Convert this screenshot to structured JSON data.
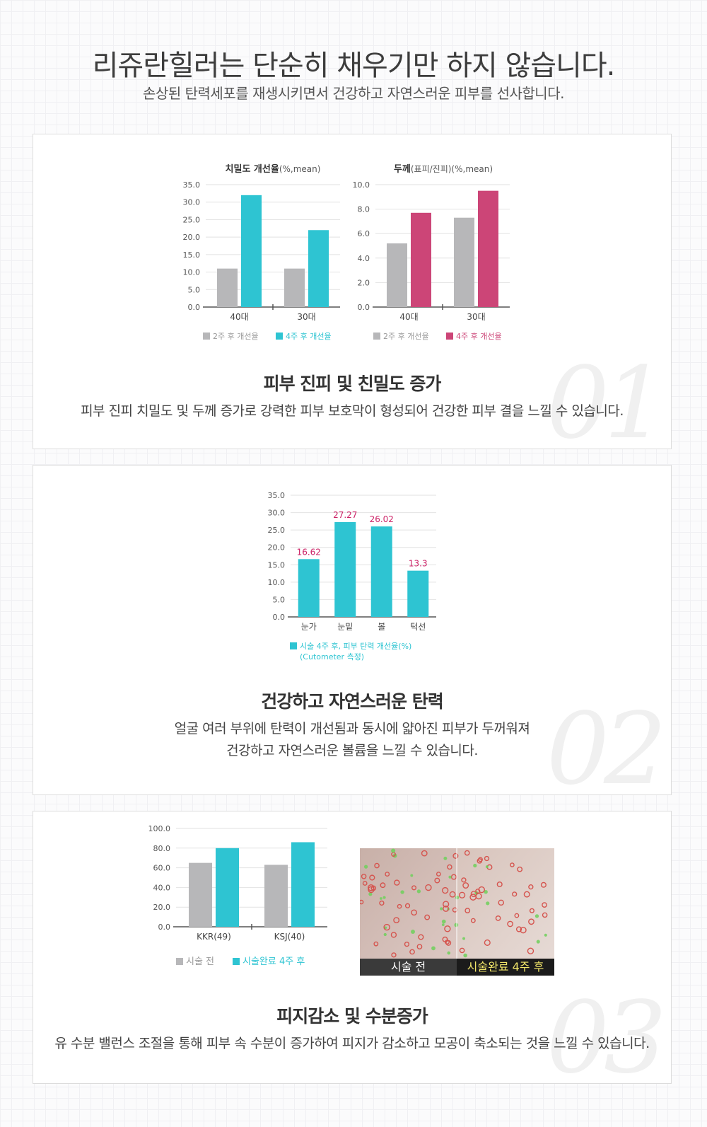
{
  "header": {
    "title": "리쥬란힐러는 단순히 채우기만 하지 않습니다.",
    "subtitle": "손상된 탄력세포를 재생시키면서 건강하고 자연스러운 피부를 선사합니다."
  },
  "colors": {
    "gray": "#b7b7b9",
    "cyan": "#2ec4d2",
    "magenta": "#cc4577",
    "label": "#cc2266"
  },
  "sections": [
    {
      "number": "01",
      "title": "피부 진피 및 친밀도 증가",
      "desc_lines": [
        "피부 진피 치밀도 및 두께 증가로 강력한 피부 보호막이 형성되어 건강한 피부 결을 느낄 수 있습니다."
      ]
    },
    {
      "number": "02",
      "title": "건강하고 자연스러운 탄력",
      "desc_lines": [
        "얼굴 여러 부위에 탄력이 개선됨과 동시에 얇아진 피부가 두꺼워져",
        "건강하고 자연스러운 볼륨을 느낄 수 있습니다."
      ]
    },
    {
      "number": "03",
      "title": "피지감소 및 수분증가",
      "desc_lines": [
        "유 수분 밸런스 조절을 통해 피부 속 수분이 증가하여 피지가 감소하고 모공이 축소되는 것을 느낄 수 있습니다."
      ]
    }
  ],
  "photo": {
    "before_label": "시술 전",
    "after_label": "시술완료 4주 후"
  },
  "chart_data": [
    {
      "type": "bar",
      "title": "치밀도 개선율",
      "title_suffix": "(%,mean)",
      "categories": [
        "40대",
        "30대"
      ],
      "ylim": [
        0,
        35
      ],
      "yticks": [
        "0.0",
        "5.0",
        "10.0",
        "15.0",
        "20.0",
        "25.0",
        "30.0",
        "35.0"
      ],
      "grid": true,
      "legend_position": "bottom",
      "series": [
        {
          "name": "2주 후 개선율",
          "color": "#b7b7b9",
          "values": [
            11,
            11
          ]
        },
        {
          "name": "4주 후 개선율",
          "color": "#2ec4d2",
          "values": [
            32,
            22
          ]
        }
      ]
    },
    {
      "type": "bar",
      "title": "두께",
      "title_suffix": "(표피/진피)(%,mean)",
      "categories": [
        "40대",
        "30대"
      ],
      "ylim": [
        0,
        10
      ],
      "yticks": [
        "0.0",
        "2.0",
        "4.0",
        "6.0",
        "8.0",
        "10.0"
      ],
      "grid": true,
      "legend_position": "bottom",
      "series": [
        {
          "name": "2주 후 개선율",
          "color": "#b7b7b9",
          "values": [
            5.2,
            7.3
          ]
        },
        {
          "name": "4주 후 개선율",
          "color": "#cc4577",
          "values": [
            7.7,
            9.5
          ]
        }
      ]
    },
    {
      "type": "bar",
      "title": "",
      "categories": [
        "눈가",
        "눈밑",
        "볼",
        "턱선"
      ],
      "ylim": [
        0,
        35
      ],
      "yticks": [
        "0.0",
        "5.0",
        "10.0",
        "15.0",
        "20.0",
        "25.0",
        "30.0",
        "35.0"
      ],
      "grid": true,
      "legend_position": "bottom",
      "series": [
        {
          "name": "시술 4주 후, 피부 탄력 개선율(%)",
          "color": "#2ec4d2",
          "values": [
            16.62,
            27.27,
            26.02,
            13.3
          ],
          "data_labels": [
            "16.62",
            "27.27",
            "26.02",
            "13.3"
          ]
        }
      ],
      "legend_note": "(Cutometer 측정)"
    },
    {
      "type": "bar",
      "title": "",
      "categories": [
        "KKR(49)",
        "KSJ(40)"
      ],
      "ylim": [
        0,
        100
      ],
      "yticks": [
        "0.0",
        "20.0",
        "40.0",
        "60.0",
        "80.0",
        "100.0"
      ],
      "grid": true,
      "legend_position": "bottom",
      "series": [
        {
          "name": "시술 전",
          "color": "#b7b7b9",
          "values": [
            65,
            63
          ]
        },
        {
          "name": "시술완료 4주 후",
          "color": "#2ec4d2",
          "values": [
            80,
            86
          ]
        }
      ]
    }
  ]
}
